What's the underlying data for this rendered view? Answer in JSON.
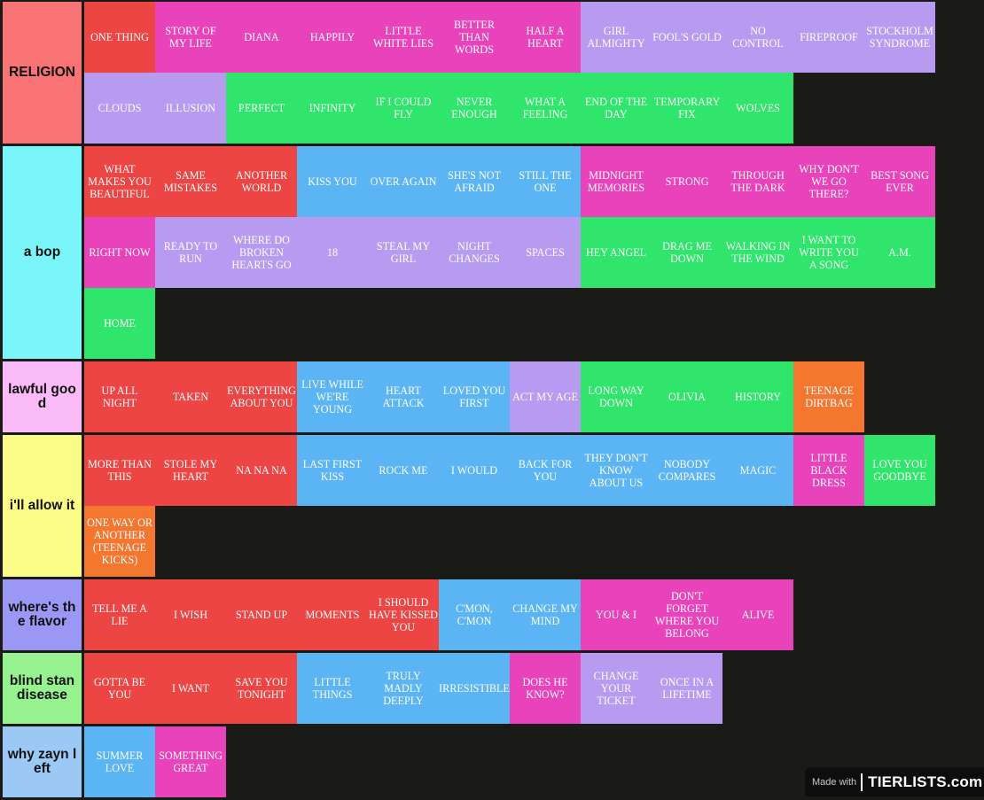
{
  "colors": {
    "red": "#ed4444",
    "pink": "#e843ba",
    "lavender": "#b79bf0",
    "green": "#30e56b",
    "blue": "#5bb4f3",
    "orange": "#f4762f",
    "background": "#1a1a17"
  },
  "tiers": [
    {
      "label": "RELIGION",
      "color": "#f87474",
      "items": [
        {
          "text": "ONE THING",
          "color": "red"
        },
        {
          "text": "STORY OF MY LIFE",
          "color": "pink"
        },
        {
          "text": "DIANA",
          "color": "pink"
        },
        {
          "text": "HAPPILY",
          "color": "pink"
        },
        {
          "text": "LITTLE WHITE LIES",
          "color": "pink"
        },
        {
          "text": "BETTER THAN WORDS",
          "color": "pink"
        },
        {
          "text": "HALF A HEART",
          "color": "pink"
        },
        {
          "text": "GIRL ALMIGHTY",
          "color": "lav"
        },
        {
          "text": "FOOL'S GOLD",
          "color": "lav"
        },
        {
          "text": "NO CONTROL",
          "color": "lav"
        },
        {
          "text": "FIREPROOF",
          "color": "lav"
        },
        {
          "text": "STOCKHOLM SYNDROME",
          "color": "lav"
        },
        {
          "text": "CLOUDS",
          "color": "lav"
        },
        {
          "text": "ILLUSION",
          "color": "lav"
        },
        {
          "text": "PERFECT",
          "color": "green"
        },
        {
          "text": "INFINITY",
          "color": "green"
        },
        {
          "text": "IF I COULD FLY",
          "color": "green"
        },
        {
          "text": "NEVER ENOUGH",
          "color": "green"
        },
        {
          "text": "WHAT A FEELING",
          "color": "green"
        },
        {
          "text": "END OF THE DAY",
          "color": "green"
        },
        {
          "text": "TEMPORARY FIX",
          "color": "green"
        },
        {
          "text": "WOLVES",
          "color": "green"
        }
      ]
    },
    {
      "label": "a bop",
      "color": "#7af6fb",
      "items": [
        {
          "text": "WHAT MAKES YOU BEAUTIFUL",
          "color": "red"
        },
        {
          "text": "SAME MISTAKES",
          "color": "red"
        },
        {
          "text": "ANOTHER WORLD",
          "color": "red"
        },
        {
          "text": "KISS YOU",
          "color": "blue"
        },
        {
          "text": "OVER AGAIN",
          "color": "blue"
        },
        {
          "text": "SHE'S NOT AFRAID",
          "color": "blue"
        },
        {
          "text": "STILL THE ONE",
          "color": "blue"
        },
        {
          "text": "MIDNIGHT MEMORIES",
          "color": "pink"
        },
        {
          "text": "STRONG",
          "color": "pink"
        },
        {
          "text": "THROUGH THE DARK",
          "color": "pink"
        },
        {
          "text": "WHY DON'T WE GO THERE?",
          "color": "pink"
        },
        {
          "text": "BEST SONG EVER",
          "color": "pink"
        },
        {
          "text": "RIGHT NOW",
          "color": "pink"
        },
        {
          "text": "READY TO RUN",
          "color": "lav"
        },
        {
          "text": "WHERE DO BROKEN HEARTS GO",
          "color": "lav"
        },
        {
          "text": "18",
          "color": "lav"
        },
        {
          "text": "STEAL MY GIRL",
          "color": "lav"
        },
        {
          "text": "NIGHT CHANGES",
          "color": "lav"
        },
        {
          "text": "SPACES",
          "color": "lav"
        },
        {
          "text": "HEY ANGEL",
          "color": "green"
        },
        {
          "text": "DRAG ME DOWN",
          "color": "green"
        },
        {
          "text": "WALKING IN THE WIND",
          "color": "green"
        },
        {
          "text": "I WANT TO WRITE YOU A SONG",
          "color": "green"
        },
        {
          "text": "A.M.",
          "color": "green"
        },
        {
          "text": "HOME",
          "color": "green"
        }
      ]
    },
    {
      "label": "lawful good",
      "color": "#fbbaf8",
      "items": [
        {
          "text": "UP ALL NIGHT",
          "color": "red"
        },
        {
          "text": "TAKEN",
          "color": "red"
        },
        {
          "text": "EVERYTHING ABOUT YOU",
          "color": "red"
        },
        {
          "text": "LIVE WHILE WE'RE YOUNG",
          "color": "blue"
        },
        {
          "text": "HEART ATTACK",
          "color": "blue"
        },
        {
          "text": "LOVED YOU FIRST",
          "color": "blue"
        },
        {
          "text": "ACT MY AGE",
          "color": "lav"
        },
        {
          "text": "LONG WAY DOWN",
          "color": "green"
        },
        {
          "text": "OLIVIA",
          "color": "green"
        },
        {
          "text": "HISTORY",
          "color": "green"
        },
        {
          "text": "TEENAGE DIRTBAG",
          "color": "orange"
        }
      ]
    },
    {
      "label": "i'll allow it",
      "color": "#fbfb88",
      "items": [
        {
          "text": "MORE THAN THIS",
          "color": "red"
        },
        {
          "text": "STOLE MY HEART",
          "color": "red"
        },
        {
          "text": "NA NA NA",
          "color": "red"
        },
        {
          "text": "LAST FIRST KISS",
          "color": "blue"
        },
        {
          "text": "ROCK ME",
          "color": "blue"
        },
        {
          "text": "I WOULD",
          "color": "blue"
        },
        {
          "text": "BACK FOR YOU",
          "color": "blue"
        },
        {
          "text": "THEY DON'T KNOW ABOUT US",
          "color": "blue"
        },
        {
          "text": "NOBODY COMPARES",
          "color": "blue"
        },
        {
          "text": "MAGIC",
          "color": "blue"
        },
        {
          "text": "LITTLE BLACK DRESS",
          "color": "pink"
        },
        {
          "text": "LOVE YOU GOODBYE",
          "color": "green"
        },
        {
          "text": "ONE WAY OR ANOTHER (TEENAGE KICKS)",
          "color": "orange"
        }
      ]
    },
    {
      "label": "where's the flavor",
      "color": "#9a98f4",
      "items": [
        {
          "text": "TELL ME A LIE",
          "color": "red"
        },
        {
          "text": "I WISH",
          "color": "red"
        },
        {
          "text": "STAND UP",
          "color": "red"
        },
        {
          "text": "MOMENTS",
          "color": "red"
        },
        {
          "text": "I SHOULD HAVE KISSED YOU",
          "color": "red"
        },
        {
          "text": "C'MON, C'MON",
          "color": "blue"
        },
        {
          "text": "CHANGE MY MIND",
          "color": "blue"
        },
        {
          "text": "YOU & I",
          "color": "pink"
        },
        {
          "text": "DON'T FORGET WHERE YOU BELONG",
          "color": "pink"
        },
        {
          "text": "ALIVE",
          "color": "pink"
        }
      ]
    },
    {
      "label": "blind stan disease",
      "color": "#95f28e",
      "items": [
        {
          "text": "GOTTA BE YOU",
          "color": "red"
        },
        {
          "text": "I WANT",
          "color": "red"
        },
        {
          "text": "SAVE YOU TONIGHT",
          "color": "red"
        },
        {
          "text": "LITTLE THINGS",
          "color": "blue"
        },
        {
          "text": "TRULY MADLY DEEPLY",
          "color": "blue"
        },
        {
          "text": "IRRESISTIBLE",
          "color": "blue"
        },
        {
          "text": "DOES HE KNOW?",
          "color": "pink"
        },
        {
          "text": "CHANGE YOUR TICKET",
          "color": "lav"
        },
        {
          "text": "ONCE IN A LIFETIME",
          "color": "lav"
        }
      ]
    },
    {
      "label": "why zayn left",
      "color": "#9cc8f5",
      "items": [
        {
          "text": "SUMMER LOVE",
          "color": "blue"
        },
        {
          "text": "SOMETHING GREAT",
          "color": "pink"
        }
      ]
    }
  ],
  "watermark": {
    "made_with": "Made with",
    "brand": "TIERLISTS.com"
  }
}
